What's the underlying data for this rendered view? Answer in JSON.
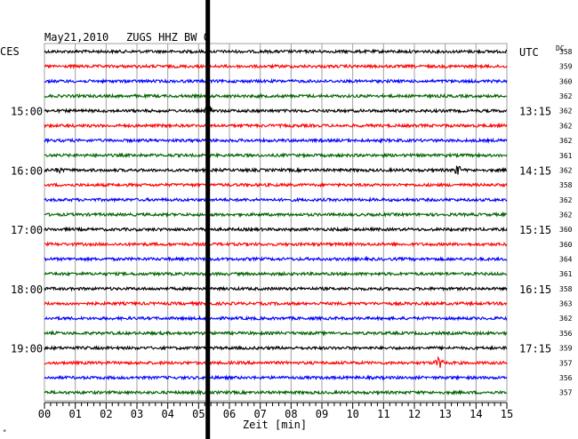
{
  "header": {
    "date": "May21,2010",
    "station": "ZUGS HHZ BW 0",
    "left_zone": "CES",
    "right_zone": "UTC",
    "dc_label": "DC"
  },
  "footer": {
    "xlabel": "Zeit [min]",
    "corner_mark": "*"
  },
  "colors": {
    "cycle": [
      "#000000",
      "#ff0000",
      "#0000ff",
      "#006400"
    ],
    "grid": "#a0a0a0",
    "marker": "#000000"
  },
  "chart_data": {
    "type": "line",
    "title": "May21,2010  ZUGS HHZ BW 0",
    "xlabel": "Zeit [min]",
    "xlim": [
      0,
      15
    ],
    "x_ticks": [
      "00",
      "01",
      "02",
      "03",
      "04",
      "05",
      "06",
      "07",
      "08",
      "09",
      "10",
      "11",
      "12",
      "13",
      "14",
      "15"
    ],
    "minor_ticks_per_minute": 5,
    "trace_count": 24,
    "trace_interval_min": 15,
    "marker_line_min": 5.3,
    "left_time_labels": [
      {
        "trace": 4,
        "text": "15:00"
      },
      {
        "trace": 8,
        "text": "16:00"
      },
      {
        "trace": 12,
        "text": "17:00"
      },
      {
        "trace": 16,
        "text": "18:00"
      },
      {
        "trace": 20,
        "text": "19:00"
      }
    ],
    "right_time_labels": [
      {
        "trace": 0,
        "text": "UTC"
      },
      {
        "trace": 4,
        "text": "13:15"
      },
      {
        "trace": 8,
        "text": "14:15"
      },
      {
        "trace": 12,
        "text": "15:15"
      },
      {
        "trace": 16,
        "text": "16:15"
      },
      {
        "trace": 20,
        "text": "17:15"
      }
    ],
    "dc_offsets": [
      358,
      359,
      360,
      362,
      362,
      362,
      362,
      361,
      362,
      358,
      362,
      362,
      360,
      360,
      364,
      361,
      358,
      363,
      362,
      356,
      359,
      357,
      356,
      357
    ],
    "events": [
      {
        "trace": 4,
        "minute": 5.3,
        "amp": 9
      },
      {
        "trace": 8,
        "minute": 13.4,
        "amp": 6
      },
      {
        "trace": 8,
        "minute": 0.5,
        "amp": 4
      },
      {
        "trace": 21,
        "minute": 12.8,
        "amp": 8
      }
    ],
    "grid": true
  }
}
